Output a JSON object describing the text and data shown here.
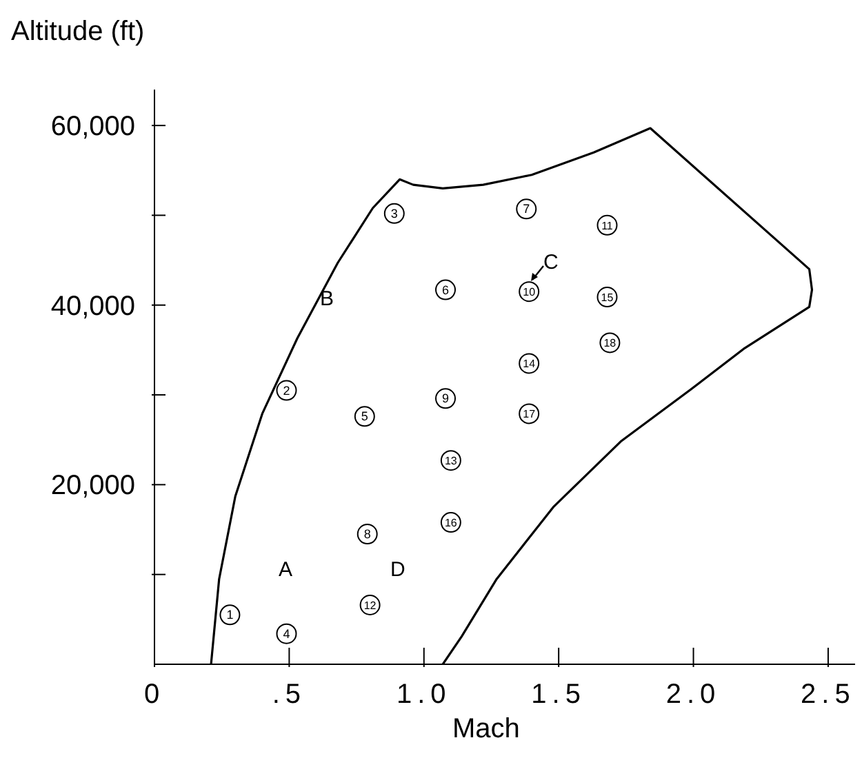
{
  "chart_data": {
    "type": "scatter",
    "xlabel": "Mach",
    "ylabel": "Altitude (ft)",
    "xlim": [
      0,
      2.6
    ],
    "ylim": [
      0,
      64000
    ],
    "xticks": [
      0,
      {
        "value": 0.5,
        "label": ".5"
      },
      {
        "value": 1,
        "label": "1.0"
      },
      {
        "value": 1.5,
        "label": "1.5"
      },
      {
        "value": 2,
        "label": "2.0"
      },
      {
        "value": 2.5,
        "label": "2.5"
      }
    ],
    "yticks": [
      {
        "value": 10000,
        "label": null
      },
      {
        "value": 20000,
        "label": "20,000"
      },
      {
        "value": 30000,
        "label": null
      },
      {
        "value": 40000,
        "label": "40,000"
      },
      {
        "value": 50000,
        "label": null
      },
      {
        "value": 60000,
        "label": "60,000"
      }
    ],
    "grid": false,
    "series": [
      {
        "type": "line",
        "color": "#000000",
        "marker": "none",
        "x": [
          0.21,
          0.24,
          0.3,
          0.4,
          0.53,
          0.68,
          0.81,
          0.91,
          0.96,
          1.07,
          1.22,
          1.4,
          1.63,
          1.84,
          2.43,
          2.44,
          2.43,
          2.19,
          1.99,
          1.73,
          1.48,
          1.27,
          1.14,
          1.07
        ],
        "values": [
          0,
          9500,
          18700,
          27900,
          36300,
          44700,
          50800,
          54000,
          53400,
          53000,
          53400,
          54500,
          57000,
          59700,
          44000,
          41700,
          39800,
          35200,
          30600,
          24800,
          17500,
          9500,
          3100,
          0
        ]
      },
      {
        "color": "#000000",
        "marker": "circle",
        "x": [
          0.28,
          0.49,
          0.89,
          0.49,
          0.78,
          1.08,
          1.38,
          0.79,
          1.08,
          1.39,
          1.68,
          0.8,
          1.1,
          1.39,
          1.68,
          1.1,
          1.39,
          1.69
        ],
        "values": [
          5500,
          30500,
          50200,
          3400,
          27600,
          41700,
          50700,
          14500,
          29600,
          41500,
          48900,
          6600,
          22700,
          33500,
          40900,
          15800,
          27900,
          35800
        ]
      }
    ],
    "annotations": [
      "A",
      {
        "text": "B",
        "x": 0.64,
        "y": 40900
      },
      "C",
      "D",
      {
        "text": "1",
        "x": 0.28,
        "y": 5500
      },
      {
        "text": "2",
        "x": 0.49,
        "y": 30500
      },
      {
        "text": "3",
        "x": 0.89,
        "y": 50200
      },
      {
        "text": "4",
        "x": 0.49,
        "y": 3400
      },
      {
        "text": "5",
        "x": 0.78,
        "y": 27600
      },
      {
        "text": "6",
        "x": 1.08,
        "y": 41700
      },
      {
        "text": "7",
        "x": 1.38,
        "y": 50700
      },
      {
        "text": "8",
        "x": 0.79,
        "y": 14500
      },
      {
        "text": "9",
        "x": 1.08,
        "y": 29600
      },
      {
        "text": "10",
        "x": 1.39,
        "y": 41500
      },
      {
        "text": "11",
        "x": 1.68,
        "y": 48900
      },
      {
        "text": "12",
        "x": 0.8,
        "y": 6600
      },
      {
        "text": "13",
        "x": 1.1,
        "y": 22700
      },
      {
        "text": "14",
        "x": 1.39,
        "y": 33500
      },
      {
        "text": "15",
        "x": 1.68,
        "y": 40900
      },
      {
        "text": "16",
        "x": 1.1,
        "y": 15800
      },
      {
        "text": "17",
        "x": 1.39,
        "y": 27900
      },
      {
        "text": "18",
        "x": 1.69,
        "y": 35800
      }
    ]
  }
}
